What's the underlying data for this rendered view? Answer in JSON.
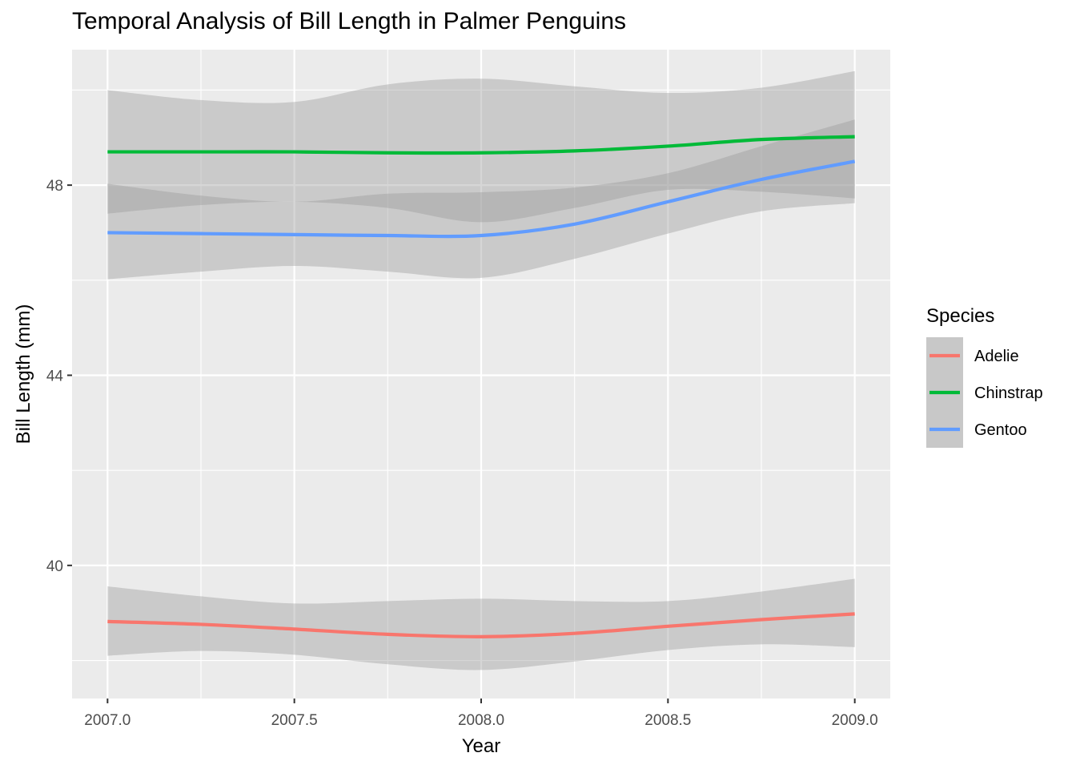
{
  "chart_data": {
    "type": "line",
    "title": "Temporal Analysis of Bill Length in Palmer Penguins",
    "xlabel": "Year",
    "ylabel": "Bill Length (mm)",
    "xlim": [
      2006.905,
      2009.095
    ],
    "ylim": [
      37.2,
      50.85
    ],
    "x_ticks": [
      2007.0,
      2007.5,
      2008.0,
      2008.5,
      2009.0
    ],
    "x_tick_labels": [
      "2007.0",
      "2007.5",
      "2008.0",
      "2008.5",
      "2009.0"
    ],
    "y_ticks": [
      40,
      44,
      48
    ],
    "y_tick_labels": [
      "40",
      "44",
      "48"
    ],
    "grid": true,
    "legend": {
      "title": "Species",
      "position": "right"
    },
    "series": [
      {
        "name": "Adelie",
        "color": "#F8766D",
        "x": [
          2007.0,
          2007.25,
          2007.5,
          2007.75,
          2008.0,
          2008.25,
          2008.5,
          2008.75,
          2009.0
        ],
        "y": [
          38.82,
          38.76,
          38.66,
          38.55,
          38.5,
          38.57,
          38.72,
          38.86,
          38.98
        ],
        "lower": [
          38.1,
          38.2,
          38.12,
          37.92,
          37.8,
          37.98,
          38.22,
          38.34,
          38.28
        ],
        "upper": [
          39.56,
          39.35,
          39.2,
          39.25,
          39.3,
          39.25,
          39.25,
          39.45,
          39.72
        ]
      },
      {
        "name": "Chinstrap",
        "color": "#00BA38",
        "x": [
          2007.0,
          2007.25,
          2007.5,
          2007.75,
          2008.0,
          2008.25,
          2008.5,
          2008.75,
          2009.0
        ],
        "y": [
          48.7,
          48.7,
          48.7,
          48.68,
          48.68,
          48.72,
          48.82,
          48.96,
          49.02
        ],
        "lower": [
          47.4,
          47.58,
          47.65,
          47.52,
          47.22,
          47.52,
          47.9,
          47.86,
          47.72
        ],
        "upper": [
          50.0,
          49.79,
          49.75,
          50.12,
          50.24,
          50.08,
          49.94,
          50.05,
          50.4
        ]
      },
      {
        "name": "Gentoo",
        "color": "#619CFF",
        "x": [
          2007.0,
          2007.25,
          2007.5,
          2007.75,
          2008.0,
          2008.25,
          2008.5,
          2008.75,
          2009.0
        ],
        "y": [
          47.0,
          46.98,
          46.96,
          46.94,
          46.94,
          47.18,
          47.65,
          48.12,
          48.5
        ],
        "lower": [
          46.02,
          46.18,
          46.3,
          46.18,
          46.05,
          46.45,
          46.98,
          47.45,
          47.62
        ],
        "upper": [
          48.03,
          47.78,
          47.65,
          47.82,
          47.85,
          47.95,
          48.25,
          48.82,
          49.38
        ]
      }
    ]
  }
}
